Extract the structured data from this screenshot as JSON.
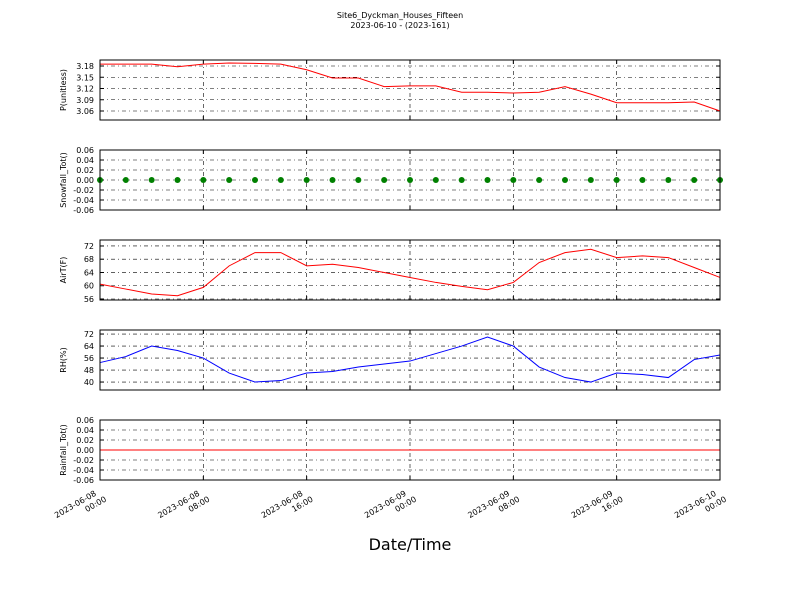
{
  "chart_data": [
    {
      "type": "line",
      "title": "Site6_Dyckman_Houses_Fifteen",
      "subtitle": "2023-06-10 - (2023-161)",
      "y_label": "P(unitless)",
      "color": "#ff0000",
      "grid": true,
      "x": [
        "2023-06-08 00:00",
        "2023-06-08 02:00",
        "2023-06-08 04:00",
        "2023-06-08 06:00",
        "2023-06-08 08:00",
        "2023-06-08 10:00",
        "2023-06-08 12:00",
        "2023-06-08 14:00",
        "2023-06-08 16:00",
        "2023-06-08 18:00",
        "2023-06-08 20:00",
        "2023-06-08 22:00",
        "2023-06-09 00:00",
        "2023-06-09 02:00",
        "2023-06-09 04:00",
        "2023-06-09 06:00",
        "2023-06-09 08:00",
        "2023-06-09 10:00",
        "2023-06-09 12:00",
        "2023-06-09 14:00",
        "2023-06-09 16:00",
        "2023-06-09 18:00",
        "2023-06-09 20:00",
        "2023-06-09 22:00",
        "2023-06-10 00:00"
      ],
      "values": [
        3.185,
        3.185,
        3.185,
        3.178,
        3.185,
        3.188,
        3.187,
        3.185,
        3.17,
        3.148,
        3.148,
        3.125,
        3.127,
        3.127,
        3.11,
        3.11,
        3.108,
        3.11,
        3.125,
        3.105,
        3.082,
        3.082,
        3.082,
        3.084,
        3.06
      ],
      "ylim": [
        3.036,
        3.196
      ],
      "yticks": [
        3.06,
        3.09,
        3.12,
        3.15,
        3.18
      ]
    },
    {
      "type": "scatter",
      "y_label": "Snowfall_Tot()",
      "color": "#008000",
      "grid": true,
      "x": [
        "2023-06-08 00:00",
        "2023-06-08 02:00",
        "2023-06-08 04:00",
        "2023-06-08 06:00",
        "2023-06-08 08:00",
        "2023-06-08 10:00",
        "2023-06-08 12:00",
        "2023-06-08 14:00",
        "2023-06-08 16:00",
        "2023-06-08 18:00",
        "2023-06-08 20:00",
        "2023-06-08 22:00",
        "2023-06-09 00:00",
        "2023-06-09 02:00",
        "2023-06-09 04:00",
        "2023-06-09 06:00",
        "2023-06-09 08:00",
        "2023-06-09 10:00",
        "2023-06-09 12:00",
        "2023-06-09 14:00",
        "2023-06-09 16:00",
        "2023-06-09 18:00",
        "2023-06-09 20:00",
        "2023-06-09 22:00",
        "2023-06-10 00:00"
      ],
      "values": [
        0,
        0,
        0,
        0,
        0,
        0,
        0,
        0,
        0,
        0,
        0,
        0,
        0,
        0,
        0,
        0,
        0,
        0,
        0,
        0,
        0,
        0,
        0,
        0,
        0
      ],
      "ylim": [
        -0.06,
        0.06
      ],
      "yticks": [
        -0.06,
        -0.04,
        -0.02,
        {
          "value": 0,
          "label": "0.00"
        },
        0.02,
        0.04,
        0.06
      ]
    },
    {
      "type": "line",
      "y_label": "AirT(F)",
      "color": "#ff0000",
      "grid": true,
      "x": [
        "2023-06-08 00:00",
        "2023-06-08 02:00",
        "2023-06-08 04:00",
        "2023-06-08 06:00",
        "2023-06-08 08:00",
        "2023-06-08 10:00",
        "2023-06-08 12:00",
        "2023-06-08 14:00",
        "2023-06-08 16:00",
        "2023-06-08 18:00",
        "2023-06-08 20:00",
        "2023-06-08 22:00",
        "2023-06-09 00:00",
        "2023-06-09 02:00",
        "2023-06-09 04:00",
        "2023-06-09 06:00",
        "2023-06-09 08:00",
        "2023-06-09 10:00",
        "2023-06-09 12:00",
        "2023-06-09 14:00",
        "2023-06-09 16:00",
        "2023-06-09 18:00",
        "2023-06-09 20:00",
        "2023-06-09 22:00",
        "2023-06-10 00:00"
      ],
      "values": [
        60.5,
        59,
        57.5,
        57,
        59.5,
        66,
        70,
        70,
        66,
        66.5,
        65.5,
        64,
        62.5,
        61,
        59.8,
        58.8,
        61,
        67,
        70,
        71,
        68.5,
        69,
        68.5,
        65.5,
        62.5
      ],
      "ylim": [
        55.7,
        73.8
      ],
      "yticks": [
        56,
        60,
        64,
        68,
        72
      ]
    },
    {
      "type": "line",
      "y_label": "RH(%)",
      "color": "#0000ff",
      "grid": true,
      "x": [
        "2023-06-08 00:00",
        "2023-06-08 02:00",
        "2023-06-08 04:00",
        "2023-06-08 06:00",
        "2023-06-08 08:00",
        "2023-06-08 10:00",
        "2023-06-08 12:00",
        "2023-06-08 14:00",
        "2023-06-08 16:00",
        "2023-06-08 18:00",
        "2023-06-08 20:00",
        "2023-06-08 22:00",
        "2023-06-09 00:00",
        "2023-06-09 02:00",
        "2023-06-09 04:00",
        "2023-06-09 06:00",
        "2023-06-09 08:00",
        "2023-06-09 10:00",
        "2023-06-09 12:00",
        "2023-06-09 14:00",
        "2023-06-09 16:00",
        "2023-06-09 18:00",
        "2023-06-09 20:00",
        "2023-06-09 22:00",
        "2023-06-10 00:00"
      ],
      "values": [
        53,
        57,
        64,
        61,
        56,
        46,
        40,
        41,
        46,
        47,
        50,
        52,
        54,
        59,
        64,
        70,
        64,
        50,
        43,
        40,
        46,
        45,
        43,
        55,
        58
      ],
      "ylim": [
        34.7,
        74.7
      ],
      "yticks": [
        40,
        48,
        56,
        64,
        72
      ]
    },
    {
      "type": "line",
      "y_label": "Rainfall_Tot()",
      "x_label": "Date/Time",
      "color": "#ff0000",
      "grid": true,
      "x": [
        "2023-06-08 00:00",
        "2023-06-08 02:00",
        "2023-06-08 04:00",
        "2023-06-08 06:00",
        "2023-06-08 08:00",
        "2023-06-08 10:00",
        "2023-06-08 12:00",
        "2023-06-08 14:00",
        "2023-06-08 16:00",
        "2023-06-08 18:00",
        "2023-06-08 20:00",
        "2023-06-08 22:00",
        "2023-06-09 00:00",
        "2023-06-09 02:00",
        "2023-06-09 04:00",
        "2023-06-09 06:00",
        "2023-06-09 08:00",
        "2023-06-09 10:00",
        "2023-06-09 12:00",
        "2023-06-09 14:00",
        "2023-06-09 16:00",
        "2023-06-09 18:00",
        "2023-06-09 20:00",
        "2023-06-09 22:00",
        "2023-06-10 00:00"
      ],
      "values": [
        0,
        0,
        0,
        0,
        0,
        0,
        0,
        0,
        0,
        0,
        0,
        0,
        0,
        0,
        0,
        0,
        0,
        0,
        0,
        0,
        0,
        0,
        0,
        0,
        0
      ],
      "ylim": [
        -0.06,
        0.06
      ],
      "yticks": [
        -0.06,
        -0.04,
        -0.02,
        {
          "value": 0,
          "label": "0.00"
        },
        0.02,
        0.04,
        0.06
      ],
      "xlim": [
        "2023-06-08 00:00",
        "2023-06-10 00:00"
      ],
      "xticks": [
        "2023-06-08 00:00",
        "2023-06-08 08:00",
        "2023-06-08 16:00",
        "2023-06-09 00:00",
        "2023-06-09 08:00",
        "2023-06-09 16:00",
        "2023-06-10 00:00"
      ]
    }
  ]
}
